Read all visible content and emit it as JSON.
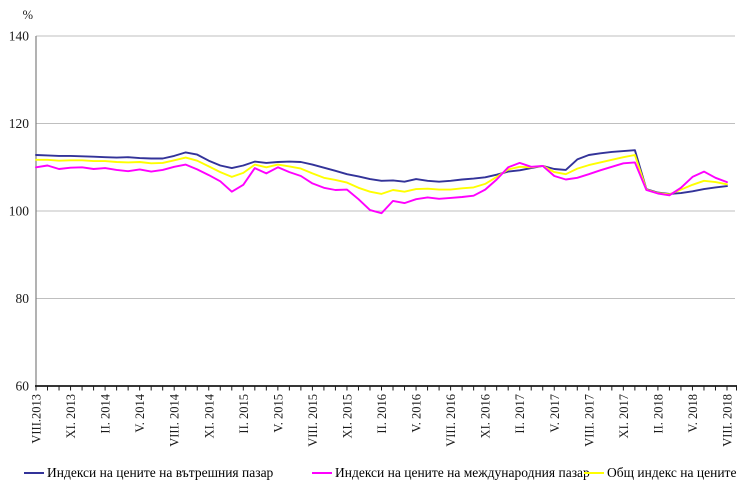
{
  "chart_data": {
    "type": "line",
    "title": "",
    "ylabel": "%",
    "ylim": [
      60,
      140
    ],
    "yticks": [
      140,
      120,
      100,
      80,
      60
    ],
    "grid": "horizontal",
    "legend_position": "bottom",
    "x_tick_step": 3,
    "x_tick_labels": [
      "VIII.2013",
      "XI. 2013",
      "II. 2014",
      "V. 2014",
      "VIII. 2014",
      "XI. 2014",
      "II. 2015",
      "V. 2015",
      "VIII. 2015",
      "XI. 2015",
      "II. 2016",
      "V. 2016",
      "VIII. 2016",
      "XI. 2016",
      "II. 2017",
      "V. 2017",
      "VIII. 2017",
      "XI. 2017",
      "II. 2018",
      "V. 2018",
      "VIII. 2018"
    ],
    "x_months": [
      "VIII.2013",
      "IX.2013",
      "X.2013",
      "XI.2013",
      "XII.2013",
      "I.2014",
      "II.2014",
      "III.2014",
      "IV.2014",
      "V.2014",
      "VI.2014",
      "VII.2014",
      "VIII.2014",
      "IX.2014",
      "X.2014",
      "XI.2014",
      "XII.2014",
      "I.2015",
      "II.2015",
      "III.2015",
      "IV.2015",
      "V.2015",
      "VI.2015",
      "VII.2015",
      "VIII.2015",
      "IX.2015",
      "X.2015",
      "XI.2015",
      "XII.2015",
      "I.2016",
      "II.2016",
      "III.2016",
      "IV.2016",
      "V.2016",
      "VI.2016",
      "VII.2016",
      "VIII.2016",
      "IX.2016",
      "X.2016",
      "XI.2016",
      "XII.2016",
      "I.2017",
      "II.2017",
      "III.2017",
      "IV.2017",
      "V.2017",
      "VI.2017",
      "VII.2017",
      "VIII.2017",
      "IX.2017",
      "X.2017",
      "XI.2017",
      "XII.2017",
      "I.2018",
      "II.2018",
      "III.2018",
      "IV.2018",
      "V.2018",
      "VI.2018",
      "VII.2018",
      "VIII.2018"
    ],
    "series": [
      {
        "name": "Индекси на цените на вътрешния пазар",
        "color": "#333399",
        "values": [
          112.8,
          112.7,
          112.6,
          112.6,
          112.5,
          112.4,
          112.3,
          112.2,
          112.3,
          112.1,
          112.0,
          112.0,
          112.6,
          113.4,
          112.9,
          111.5,
          110.4,
          109.8,
          110.4,
          111.3,
          111.0,
          111.2,
          111.3,
          111.2,
          110.6,
          109.9,
          109.2,
          108.4,
          107.9,
          107.3,
          106.9,
          107.0,
          106.7,
          107.3,
          106.9,
          106.7,
          106.9,
          107.2,
          107.4,
          107.7,
          108.3,
          109.0,
          109.3,
          109.8,
          110.3,
          109.6,
          109.4,
          111.8,
          112.8,
          113.2,
          113.5,
          113.7,
          113.9,
          105.0,
          104.2,
          103.9,
          104.1,
          104.5,
          105.0,
          105.4,
          105.7
        ]
      },
      {
        "name": "Индекси на цените на международния пазар",
        "color": "#FF00FF",
        "values": [
          110.0,
          110.4,
          109.6,
          109.9,
          110.0,
          109.6,
          109.8,
          109.4,
          109.1,
          109.5,
          109.0,
          109.4,
          110.1,
          110.6,
          109.5,
          108.2,
          106.8,
          104.4,
          106.0,
          109.8,
          108.6,
          110.0,
          108.9,
          108.0,
          106.3,
          105.3,
          104.8,
          104.9,
          102.7,
          100.2,
          99.5,
          102.3,
          101.8,
          102.7,
          103.1,
          102.8,
          103.0,
          103.2,
          103.5,
          104.9,
          107.2,
          110.0,
          111.0,
          110.1,
          110.3,
          108.0,
          107.2,
          107.6,
          108.4,
          109.3,
          110.1,
          110.9,
          111.1,
          104.8,
          104.0,
          103.6,
          105.3,
          107.8,
          109.0,
          107.6,
          106.6
        ]
      },
      {
        "name": "Общ индекс на цените",
        "color": "#FFFF00",
        "values": [
          111.7,
          111.7,
          111.5,
          111.6,
          111.6,
          111.4,
          111.4,
          111.2,
          111.1,
          111.2,
          110.9,
          111.0,
          111.6,
          112.2,
          111.5,
          110.2,
          108.9,
          107.8,
          108.7,
          110.6,
          110.0,
          110.6,
          110.2,
          109.7,
          108.6,
          107.6,
          107.1,
          106.5,
          105.3,
          104.4,
          103.9,
          104.8,
          104.4,
          105.0,
          105.1,
          104.9,
          104.9,
          105.2,
          105.4,
          106.2,
          107.8,
          109.5,
          110.1,
          110.0,
          110.3,
          108.9,
          108.4,
          109.7,
          110.5,
          111.1,
          111.7,
          112.3,
          112.8,
          104.9,
          104.1,
          103.8,
          104.9,
          106.0,
          106.9,
          106.6,
          106.1
        ]
      }
    ],
    "colors": {
      "gridline": "#BFBFBF",
      "y_axis": "#808080",
      "x_axis": "#1a1a1a",
      "background": "#FFFFFF"
    }
  }
}
